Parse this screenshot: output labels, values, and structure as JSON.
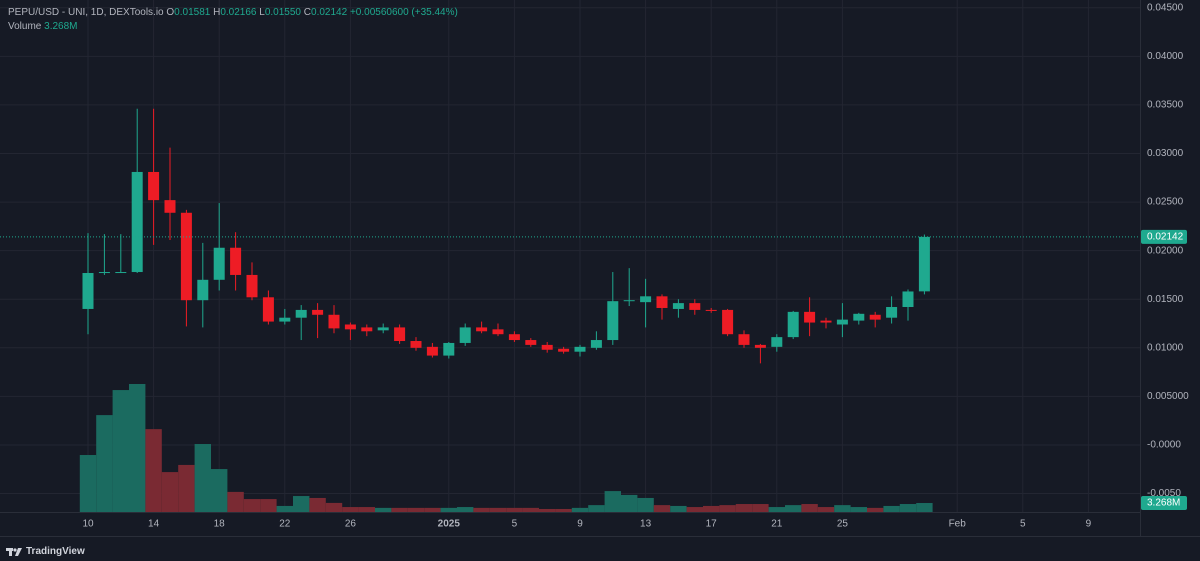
{
  "chart_data": {
    "type": "candlestick",
    "title": "PEPU/USD - UNI, 1D, DEXTools.io",
    "ohlc_legend": {
      "o_label": "O",
      "o": "0.01581",
      "h_label": "H",
      "h": "0.02166",
      "l_label": "L",
      "l": "0.01550",
      "c_label": "C",
      "c": "0.02142",
      "change": "+0.00560600 (+35.44%)"
    },
    "categories": [
      "10",
      null,
      null,
      null,
      "14",
      null,
      null,
      null,
      "18",
      null,
      null,
      null,
      "22",
      null,
      null,
      null,
      "26",
      null,
      null,
      null,
      null,
      null,
      "2025",
      null,
      null,
      null,
      "5",
      null,
      null,
      null,
      "9",
      null,
      null,
      null,
      "13",
      null,
      null,
      null,
      "17",
      null,
      null,
      null,
      "21",
      null,
      null,
      null,
      "25",
      null,
      null,
      null,
      null,
      null,
      null,
      "Feb",
      null,
      null,
      null,
      "5",
      null,
      null,
      null,
      "9"
    ],
    "open": [
      0.014,
      0.0177,
      0.0178,
      0.0178,
      0.0281,
      0.0252,
      0.0239,
      0.0149,
      0.017,
      0.0203,
      0.0175,
      0.0152,
      0.0127,
      0.0131,
      0.0139,
      0.0134,
      0.0124,
      0.0121,
      0.0118,
      0.0121,
      0.0107,
      0.0101,
      0.0092,
      0.0105,
      0.0121,
      0.0119,
      0.0114,
      0.0108,
      0.0103,
      0.0099,
      0.0096,
      0.01,
      0.0108,
      0.0148,
      0.0147,
      0.0153,
      0.014,
      0.0146,
      0.0139,
      0.0139,
      0.0114,
      0.0103,
      0.0101,
      0.0111,
      0.0137,
      0.0128,
      0.0124,
      0.0128,
      0.0134,
      0.0131,
      0.0142,
      0.01581,
      null,
      null,
      null,
      null,
      null,
      null,
      null,
      null,
      null,
      null
    ],
    "high": [
      0.0218,
      0.0217,
      0.0217,
      0.0346,
      0.0346,
      0.0306,
      0.0242,
      0.0208,
      0.0249,
      0.0219,
      0.0188,
      0.0159,
      0.014,
      0.0144,
      0.0146,
      0.0144,
      0.0126,
      0.0124,
      0.0125,
      0.0124,
      0.0111,
      0.0105,
      0.0106,
      0.0125,
      0.0127,
      0.0125,
      0.0117,
      0.011,
      0.0106,
      0.0101,
      0.0103,
      0.0117,
      0.0178,
      0.0182,
      0.0171,
      0.0155,
      0.015,
      0.015,
      0.0141,
      0.014,
      0.0118,
      0.0104,
      0.0114,
      0.0138,
      0.0152,
      0.0131,
      0.0146,
      0.0136,
      0.0137,
      0.0153,
      0.016,
      0.02166,
      null,
      null,
      null,
      null,
      null,
      null,
      null,
      null,
      null,
      null
    ],
    "low": [
      0.0114,
      0.0175,
      0.0177,
      0.0177,
      0.0206,
      0.0211,
      0.0122,
      0.0121,
      0.0159,
      0.0159,
      0.0149,
      0.0124,
      0.0124,
      0.0108,
      0.011,
      0.0115,
      0.0108,
      0.0112,
      0.0115,
      0.0104,
      0.0097,
      0.009,
      0.0089,
      0.0102,
      0.0115,
      0.0112,
      0.0106,
      0.0101,
      0.0095,
      0.0094,
      0.0091,
      0.0098,
      0.0103,
      0.0143,
      0.0121,
      0.0129,
      0.0131,
      0.0134,
      0.0136,
      0.0112,
      0.01,
      0.0084,
      0.0096,
      0.0109,
      0.0112,
      0.012,
      0.0111,
      0.0124,
      0.0121,
      0.0125,
      0.0128,
      0.0155,
      null,
      null,
      null,
      null,
      null,
      null,
      null,
      null,
      null,
      null
    ],
    "close": [
      0.0177,
      0.0178,
      0.0178,
      0.0281,
      0.0252,
      0.0239,
      0.0149,
      0.017,
      0.0203,
      0.0175,
      0.0152,
      0.0127,
      0.0131,
      0.0139,
      0.0134,
      0.012,
      0.0119,
      0.0117,
      0.0121,
      0.0107,
      0.01,
      0.0092,
      0.0105,
      0.0121,
      0.0117,
      0.0114,
      0.0108,
      0.0103,
      0.0098,
      0.0096,
      0.0101,
      0.0108,
      0.0148,
      0.0149,
      0.0153,
      0.0141,
      0.0146,
      0.0139,
      0.0138,
      0.0114,
      0.0103,
      0.01,
      0.0111,
      0.0137,
      0.0126,
      0.0126,
      0.0129,
      0.0135,
      0.0129,
      0.0142,
      0.0158,
      0.02142,
      null,
      null,
      null,
      null,
      null,
      null,
      null,
      null,
      null,
      null
    ],
    "up_color": "#1fa98f",
    "down_color": "#ee1c25",
    "volume": {
      "name": "Volume",
      "values": [
        20.7,
        35.2,
        44.3,
        46.5,
        30.1,
        14.5,
        17.1,
        24.7,
        15.6,
        7.3,
        4.7,
        4.7,
        2.2,
        5.8,
        5.1,
        3.3,
        1.8,
        1.8,
        1.5,
        1.5,
        1.5,
        1.5,
        1.5,
        1.8,
        1.5,
        1.5,
        1.5,
        1.5,
        1.1,
        1.1,
        1.5,
        2.5,
        7.6,
        6.2,
        5.1,
        2.5,
        2.2,
        1.8,
        2.2,
        2.5,
        2.9,
        2.9,
        1.8,
        2.5,
        2.9,
        1.8,
        2.5,
        1.8,
        1.5,
        2.2,
        2.9,
        3.268,
        null,
        null,
        null,
        null,
        null,
        null,
        null,
        null,
        null,
        null
      ],
      "value_labels": [
        null,
        null,
        null,
        null,
        null,
        null,
        null,
        null,
        null,
        null,
        null,
        null,
        null,
        null,
        null,
        null,
        null,
        null,
        null,
        null,
        null,
        null,
        null,
        null,
        null,
        null,
        null,
        null,
        null,
        null,
        null,
        null,
        null,
        null,
        null,
        null,
        null,
        null,
        null,
        null,
        null,
        null,
        null,
        null,
        null,
        null,
        null,
        null,
        null,
        null,
        null,
        "3.268M",
        null,
        null,
        null,
        null,
        null,
        null,
        null,
        null,
        null,
        null
      ],
      "up_color": "#1b6b60",
      "down_color": "#7a2a33"
    },
    "ylim": [
      -0.0069,
      0.0458
    ],
    "yticks": [
      {
        "value": 0.045,
        "label": "0.04500"
      },
      {
        "value": 0.04,
        "label": "0.04000"
      },
      {
        "value": 0.035,
        "label": "0.03500"
      },
      {
        "value": 0.03,
        "label": "0.03000"
      },
      {
        "value": 0.025,
        "label": "0.02500"
      },
      {
        "value": 0.02,
        "label": "0.02000"
      },
      {
        "value": 0.015,
        "label": "0.01500"
      },
      {
        "value": 0.01,
        "label": "0.01000"
      },
      {
        "value": 0.005,
        "label": "0.005000"
      },
      {
        "value": 0,
        "label": "-0.0000"
      },
      {
        "value": -0.005,
        "label": "-0.0050"
      }
    ],
    "grid": true,
    "brand": "TradingView"
  }
}
